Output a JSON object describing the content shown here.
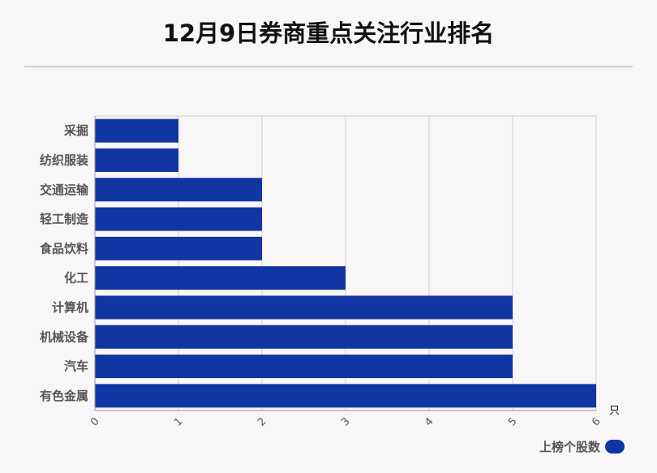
{
  "chart_data": {
    "type": "bar",
    "orientation": "horizontal",
    "title": "12月9日券商重点关注行业排名",
    "categories": [
      "采掘",
      "纺织服装",
      "交通运输",
      "轻工制造",
      "食品饮料",
      "化工",
      "计算机",
      "机械设备",
      "汽车",
      "有色金属"
    ],
    "series": [
      {
        "name": "上榜个股数",
        "values": [
          1,
          1,
          2,
          2,
          2,
          3,
          5,
          5,
          5,
          6
        ]
      }
    ],
    "xlim": [
      0,
      6
    ],
    "x_ticks": [
      "0",
      "1",
      "2",
      "3",
      "4",
      "5",
      "6"
    ],
    "x_unit": "只",
    "grid": true,
    "legend_position": "bottom-right",
    "bar_color": "#1135a3"
  }
}
